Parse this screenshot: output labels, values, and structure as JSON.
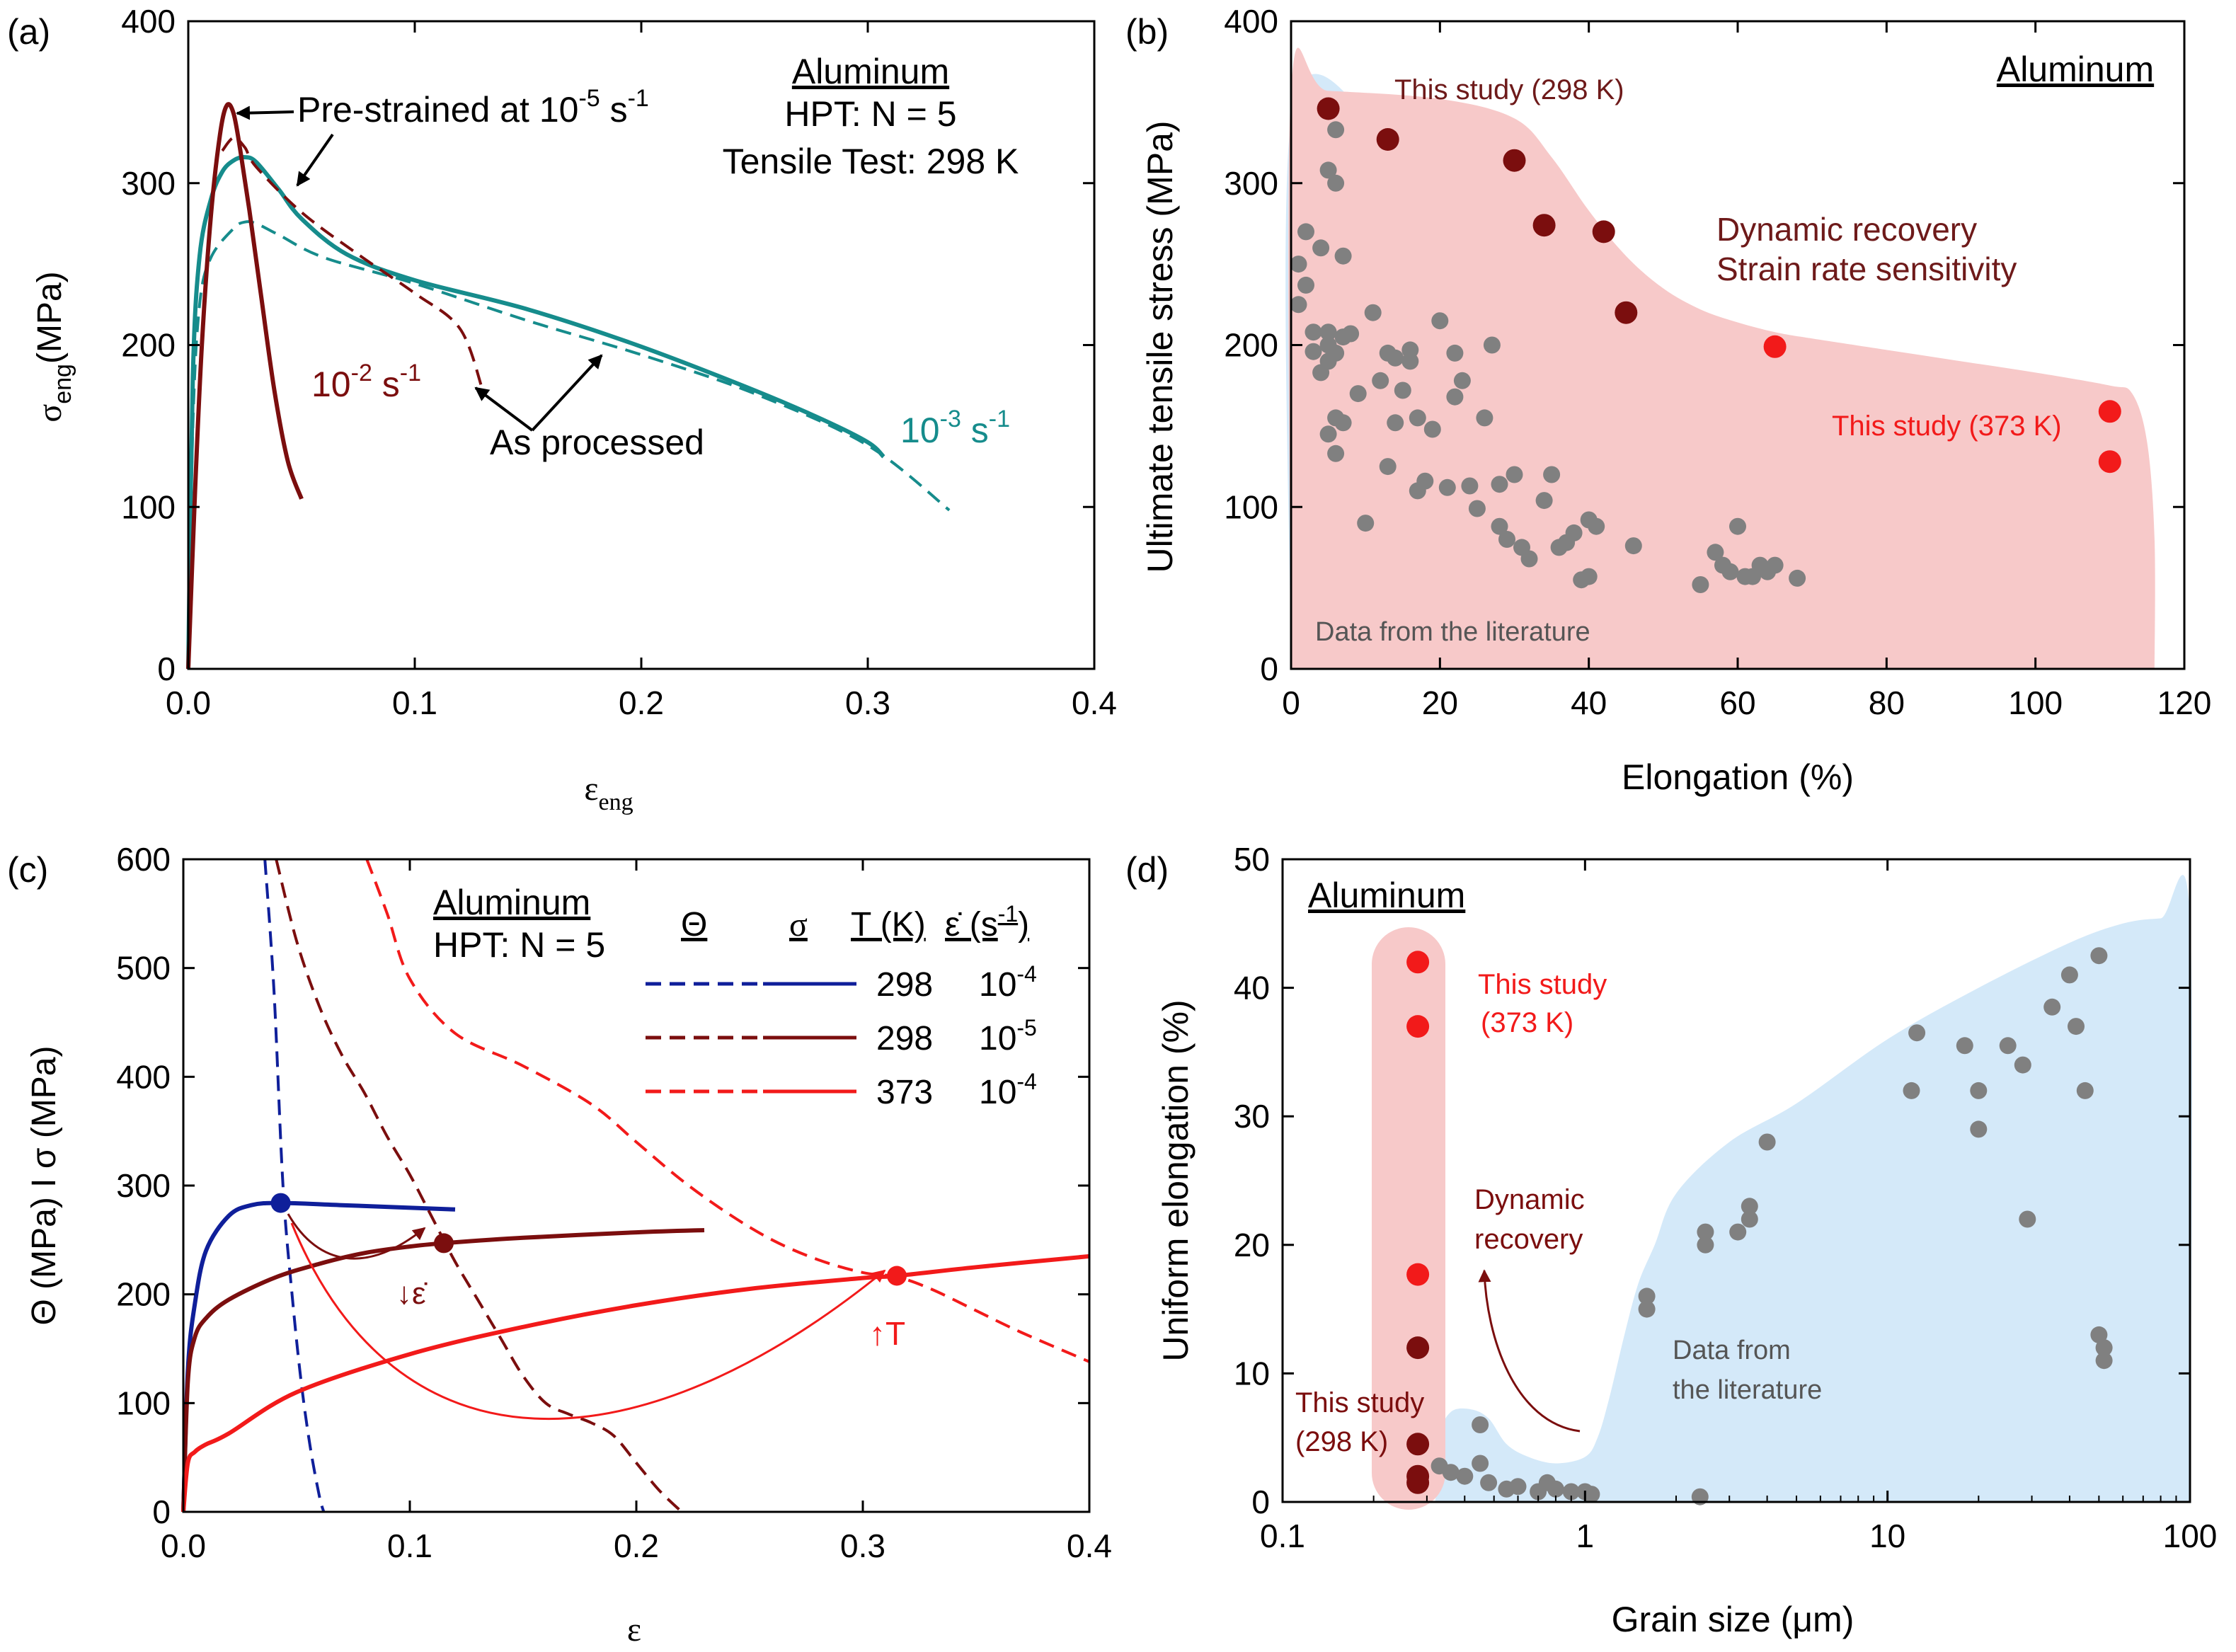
{
  "colors": {
    "teal": "#168c8c",
    "darkred": "#7b0e0e",
    "red": "#f21a1a",
    "navy": "#0f1f9a",
    "grey": "#808080",
    "pink": "#f7c9c9",
    "lightblue": "#d4e9f9",
    "maroon": "#6e1a1a",
    "axis": "#000000"
  },
  "chart_data": [
    {
      "panel": "a",
      "panel_label": "(a)",
      "type": "line",
      "title_lines": [
        "Aluminum",
        "HPT: N = 5",
        "Tensile Test: 298 K"
      ],
      "xlabel": "ε",
      "xlabel_sub": "eng",
      "ylabel": "σ",
      "ylabel_sub": "eng",
      "ylabel_unit": "(MPa)",
      "xlim": [
        0,
        0.4
      ],
      "ylim": [
        0,
        400
      ],
      "xticks": [
        0,
        0.1,
        0.2,
        0.3,
        0.4
      ],
      "xtick_labels": [
        "0.0",
        "0.1",
        "0.2",
        "0.3",
        "0.4"
      ],
      "yticks": [
        0,
        100,
        200,
        300,
        400
      ],
      "ytick_labels": [
        "0",
        "100",
        "200",
        "300",
        "400"
      ],
      "series": [
        {
          "name": "10^-3 s^-1 pre-strained",
          "style": "solid",
          "color": "teal",
          "x": [
            0,
            0.002,
            0.005,
            0.01,
            0.015,
            0.02,
            0.025,
            0.03,
            0.04,
            0.05,
            0.07,
            0.1,
            0.15,
            0.2,
            0.25,
            0.28,
            0.3,
            0.307
          ],
          "y": [
            0,
            180,
            255,
            290,
            307,
            314,
            316,
            313,
            296,
            278,
            256,
            240,
            222,
            199,
            172,
            154,
            140,
            131
          ]
        },
        {
          "name": "10^-3 s^-1 as processed",
          "style": "dashed",
          "color": "teal",
          "x": [
            0,
            0.002,
            0.005,
            0.01,
            0.02,
            0.025,
            0.03,
            0.04,
            0.06,
            0.1,
            0.15,
            0.2,
            0.25,
            0.3,
            0.336
          ],
          "y": [
            0,
            150,
            225,
            254,
            272,
            276,
            275,
            268,
            254,
            238,
            215,
            194,
            170,
            138,
            98
          ]
        },
        {
          "name": "10^-2 s^-1 pre-strained",
          "style": "solid",
          "color": "darkred",
          "x": [
            0,
            0.003,
            0.006,
            0.01,
            0.014,
            0.017,
            0.02,
            0.023,
            0.027,
            0.032,
            0.038,
            0.044,
            0.05
          ],
          "y": [
            0,
            110,
            200,
            280,
            330,
            348,
            343,
            320,
            283,
            232,
            172,
            128,
            105
          ]
        },
        {
          "name": "10^-2 s^-1 as processed",
          "style": "dashed",
          "color": "darkred",
          "x": [
            0.015,
            0.02,
            0.025,
            0.03,
            0.05,
            0.075,
            0.1,
            0.12,
            0.13
          ],
          "y": [
            320,
            328,
            322,
            310,
            282,
            256,
            232,
            210,
            172
          ]
        }
      ],
      "annotations": [
        {
          "text": "Pre-strained at 10",
          "sup": "-5",
          "tail": " s",
          "tail_sup": "-1",
          "color": "axis"
        },
        {
          "text": "10",
          "sup": "-2",
          "tail": " s",
          "tail_sup": "-1",
          "color": "darkred"
        },
        {
          "text": "As processed",
          "color": "axis"
        },
        {
          "text": "10",
          "sup": "-3",
          "tail": " s",
          "tail_sup": "-1",
          "color": "teal"
        }
      ]
    },
    {
      "panel": "b",
      "panel_label": "(b)",
      "type": "scatter",
      "title": "Aluminum",
      "xlabel": "Elongation (%)",
      "ylabel": "Ultimate tensile stress (MPa)",
      "xlim": [
        0,
        120
      ],
      "ylim": [
        0,
        400
      ],
      "xticks": [
        0,
        20,
        40,
        60,
        80,
        100,
        120
      ],
      "xtick_labels": [
        "0",
        "20",
        "40",
        "60",
        "80",
        "100",
        "120"
      ],
      "yticks": [
        0,
        100,
        200,
        300,
        400
      ],
      "ytick_labels": [
        "0",
        "100",
        "200",
        "300",
        "400"
      ],
      "regions": [
        {
          "name": "literature",
          "color": "lightblue",
          "x": [
            0,
            0,
            10,
            11,
            13,
            18,
            23,
            28,
            33,
            38,
            43,
            48,
            53,
            57,
            60,
            63,
            66,
            68,
            70,
            70
          ],
          "y": [
            0,
            340,
            342,
            300,
            268,
            250,
            233,
            215,
            200,
            185,
            172,
            160,
            148,
            136,
            122,
            104,
            78,
            44,
            10,
            0
          ]
        },
        {
          "name": "this-study",
          "color": "pink",
          "x": [
            0,
            0,
            5,
            20,
            30,
            35,
            40,
            45,
            50,
            55,
            60,
            65,
            70,
            80,
            90,
            100,
            110,
            113,
            115,
            116,
            116
          ],
          "y": [
            0,
            357,
            357,
            352,
            340,
            316,
            283,
            255,
            235,
            222,
            214,
            208,
            204,
            197,
            190,
            183,
            175,
            170,
            140,
            80,
            0
          ]
        }
      ],
      "series": [
        {
          "name": "Data from the literature",
          "color": "grey",
          "x": [
            1,
            1,
            2,
            2,
            3,
            3,
            4,
            4,
            5,
            5,
            5,
            5,
            5,
            6,
            6,
            6,
            7,
            7,
            8,
            9,
            10,
            11,
            12,
            13,
            13,
            14,
            14,
            15,
            16,
            16,
            17,
            17,
            18,
            19,
            20,
            21,
            22,
            22,
            23,
            24,
            25,
            26,
            27,
            28,
            28,
            29,
            30,
            31,
            32,
            34,
            35,
            36,
            37,
            38,
            39,
            40,
            40,
            41,
            46,
            55,
            57,
            58,
            59,
            60,
            61,
            62,
            63,
            64,
            65,
            68,
            6,
            6,
            7
          ],
          "y": [
            250,
            225,
            270,
            237,
            208,
            196,
            183,
            260,
            208,
            200,
            190,
            145,
            308,
            155,
            133,
            333,
            152,
            255,
            207,
            170,
            90,
            220,
            178,
            125,
            195,
            152,
            192,
            172,
            190,
            197,
            155,
            110,
            116,
            148,
            215,
            112,
            195,
            168,
            178,
            113,
            99,
            155,
            200,
            88,
            114,
            80,
            120,
            75,
            68,
            104,
            120,
            75,
            78,
            84,
            55,
            57,
            92,
            88,
            76,
            52,
            72,
            64,
            60,
            88,
            57,
            57,
            64,
            60,
            64,
            56,
            195,
            300,
            205
          ]
        },
        {
          "name": "This study (298 K)",
          "color": "darkred",
          "x": [
            5,
            13,
            30,
            34,
            42,
            45
          ],
          "y": [
            346,
            327,
            314,
            274,
            270,
            220
          ]
        },
        {
          "name": "This study (373 K)",
          "color": "red",
          "x": [
            65,
            110,
            110
          ],
          "y": [
            199,
            159,
            128
          ]
        }
      ],
      "labels": [
        "This study (298 K)",
        "Dynamic recovery",
        "Strain rate sensitivity",
        "This study (373 K)",
        "Data from the literature"
      ]
    },
    {
      "panel": "c",
      "panel_label": "(c)",
      "type": "line",
      "title_lines": [
        "Aluminum",
        "HPT: N = 5"
      ],
      "xlabel": "ε",
      "ylabel": "Θ (MPa) I σ (MPa)",
      "xlim": [
        0,
        0.4
      ],
      "ylim": [
        0,
        600
      ],
      "xticks": [
        0,
        0.1,
        0.2,
        0.3,
        0.4
      ],
      "xtick_labels": [
        "0.0",
        "0.1",
        "0.2",
        "0.3",
        "0.4"
      ],
      "yticks": [
        0,
        100,
        200,
        300,
        400,
        500,
        600
      ],
      "ytick_labels": [
        "0",
        "100",
        "200",
        "300",
        "400",
        "500",
        "600"
      ],
      "legend": {
        "headers": [
          "Θ",
          "σ",
          "T (K)",
          "ε̇ (s",
          "-1",
          ")"
        ],
        "rows": [
          {
            "color": "navy",
            "T": "298",
            "rate": "10",
            "rate_sup": "-4"
          },
          {
            "color": "darkred",
            "T": "298",
            "rate": "10",
            "rate_sup": "-5"
          },
          {
            "color": "red",
            "T": "373",
            "rate": "10",
            "rate_sup": "-4"
          }
        ]
      },
      "series": [
        {
          "name": "Θ 298 K 10^-4",
          "style": "dashed",
          "color": "navy",
          "x": [
            0.036,
            0.04,
            0.044,
            0.048,
            0.052,
            0.056,
            0.06,
            0.062
          ],
          "y": [
            600,
            480,
            300,
            200,
            120,
            60,
            15,
            0
          ]
        },
        {
          "name": "σ 298 K 10^-4",
          "style": "solid",
          "color": "navy",
          "x": [
            0,
            0.002,
            0.005,
            0.01,
            0.02,
            0.03,
            0.043,
            0.07,
            0.12
          ],
          "y": [
            0,
            130,
            190,
            240,
            272,
            282,
            284,
            282,
            278
          ]
        },
        {
          "name": "Θ 298 K 10^-5",
          "style": "dashed",
          "color": "darkred",
          "x": [
            0.041,
            0.05,
            0.06,
            0.07,
            0.08,
            0.09,
            0.1,
            0.11,
            0.12,
            0.13,
            0.14,
            0.15,
            0.16,
            0.17,
            0.18,
            0.19,
            0.2,
            0.21,
            0.22
          ],
          "y": [
            600,
            525,
            465,
            420,
            385,
            345,
            310,
            270,
            230,
            195,
            160,
            125,
            100,
            90,
            82,
            70,
            45,
            20,
            0
          ]
        },
        {
          "name": "σ 298 K 10^-5",
          "style": "solid",
          "color": "darkred",
          "x": [
            0,
            0.002,
            0.005,
            0.01,
            0.02,
            0.04,
            0.06,
            0.08,
            0.1,
            0.115,
            0.15,
            0.2,
            0.23
          ],
          "y": [
            0,
            120,
            160,
            178,
            195,
            215,
            228,
            238,
            244,
            247,
            252,
            257,
            259
          ]
        },
        {
          "name": "Θ 373 K 10^-4",
          "style": "dashed",
          "color": "red",
          "x": [
            0.081,
            0.09,
            0.1,
            0.12,
            0.15,
            0.18,
            0.2,
            0.22,
            0.24,
            0.26,
            0.28,
            0.3,
            0.315,
            0.33,
            0.35,
            0.37,
            0.4
          ],
          "y": [
            600,
            550,
            490,
            440,
            410,
            375,
            340,
            305,
            275,
            250,
            232,
            220,
            216,
            205,
            185,
            165,
            138
          ]
        },
        {
          "name": "σ 373 K 10^-4",
          "style": "solid",
          "color": "red",
          "x": [
            0,
            0.002,
            0.005,
            0.01,
            0.02,
            0.05,
            0.1,
            0.15,
            0.2,
            0.25,
            0.3,
            0.315,
            0.35,
            0.4
          ],
          "y": [
            0,
            45,
            55,
            62,
            72,
            110,
            145,
            170,
            190,
            205,
            215,
            217,
            225,
            235
          ]
        }
      ],
      "points": [
        {
          "color": "navy",
          "x": 0.043,
          "y": 284
        },
        {
          "color": "darkred",
          "x": 0.115,
          "y": 247
        },
        {
          "color": "red",
          "x": 0.315,
          "y": 217
        }
      ],
      "arrow_labels": [
        "↓ε̇",
        "↑T"
      ]
    },
    {
      "panel": "d",
      "panel_label": "(d)",
      "type": "scatter",
      "title": "Aluminum",
      "xscale": "log",
      "xlabel": "Grain size (μm)",
      "ylabel": "Uniform elongation (%)",
      "xlim": [
        0.1,
        100
      ],
      "ylim": [
        0,
        50
      ],
      "xticks": [
        0.1,
        1,
        10,
        100
      ],
      "xtick_labels": [
        "0.1",
        "1",
        "10",
        "100"
      ],
      "yticks": [
        0,
        10,
        20,
        30,
        40,
        50
      ],
      "ytick_labels": [
        "0",
        "10",
        "20",
        "30",
        "40",
        "50"
      ],
      "regions": [
        {
          "name": "literature",
          "color": "lightblue",
          "x": [
            0.32,
            0.33,
            0.36,
            0.42,
            0.48,
            0.55,
            0.65,
            0.8,
            1,
            1.1,
            1.2,
            1.35,
            1.5,
            1.7,
            2,
            3,
            5,
            10,
            20,
            40,
            60,
            80,
            100,
            100
          ],
          "y": [
            0,
            5,
            7,
            7.2,
            6.5,
            4.5,
            3.5,
            3,
            3.5,
            5,
            8,
            13,
            17,
            20,
            24,
            28,
            31,
            36,
            40,
            43.5,
            45,
            45.4,
            45.4,
            0
          ]
        }
      ],
      "series": [
        {
          "name": "Data from the literature",
          "color": "grey",
          "x": [
            0.33,
            0.36,
            0.4,
            0.45,
            0.45,
            0.48,
            0.55,
            0.6,
            0.7,
            0.75,
            0.8,
            0.9,
            1,
            1.05,
            2.4,
            1.6,
            1.6,
            2.5,
            2.5,
            3.2,
            3.5,
            3.5,
            4,
            12,
            12.5,
            18,
            20,
            20,
            25,
            28,
            29,
            35,
            40,
            42,
            45,
            50,
            50,
            52,
            52
          ],
          "y": [
            2.8,
            2.3,
            2,
            3,
            6,
            1.5,
            1,
            1.2,
            0.8,
            1.5,
            1,
            0.8,
            0.8,
            0.6,
            0.4,
            16,
            15,
            21,
            20,
            21,
            23,
            22,
            28,
            32,
            36.5,
            35.5,
            32,
            29,
            35.5,
            34,
            22,
            38.5,
            41,
            37,
            32,
            42.5,
            13,
            12,
            11
          ]
        },
        {
          "name": "This study (373 K)",
          "color": "red",
          "x": [
            0.28,
            0.28,
            0.28
          ],
          "y": [
            42,
            37,
            17.7
          ]
        },
        {
          "name": "This study (298 K)",
          "color": "darkred",
          "x": [
            0.28,
            0.28,
            0.28,
            0.28
          ],
          "y": [
            12,
            4.5,
            2,
            1.5
          ]
        }
      ],
      "labels": [
        "This study",
        "(373 K)",
        "Dynamic",
        "recovery",
        "Data from",
        "the literature",
        "This study",
        "(298 K)"
      ]
    }
  ]
}
